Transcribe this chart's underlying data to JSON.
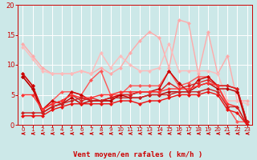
{
  "xlabel": "Vent moyen/en rafales ( km/h )",
  "xlim": [
    -0.5,
    23.5
  ],
  "ylim": [
    0,
    20
  ],
  "yticks": [
    0,
    5,
    10,
    15,
    20
  ],
  "xticks": [
    0,
    1,
    2,
    3,
    4,
    5,
    6,
    7,
    8,
    9,
    10,
    11,
    12,
    13,
    14,
    15,
    16,
    17,
    18,
    19,
    20,
    21,
    22,
    23
  ],
  "bg_color": "#cce8e8",
  "grid_color": "#ffffff",
  "series": [
    {
      "color": "#ffaaaa",
      "lw": 1.0,
      "x": [
        0,
        1,
        2,
        3,
        4,
        5,
        6,
        7,
        8,
        9,
        10,
        11,
        12,
        13,
        14,
        15,
        16,
        17,
        18,
        19,
        20,
        21,
        22,
        23
      ],
      "y": [
        13.5,
        11.5,
        9.5,
        8.5,
        8.5,
        8.5,
        9.0,
        8.5,
        9.5,
        8.5,
        9.5,
        12.0,
        14.0,
        15.5,
        14.5,
        9.5,
        17.5,
        17.0,
        8.5,
        15.5,
        8.5,
        11.5,
        4.0,
        4.0
      ]
    },
    {
      "color": "#ffbbbb",
      "lw": 1.0,
      "x": [
        0,
        1,
        2,
        3,
        4,
        5,
        6,
        7,
        8,
        9,
        10,
        11,
        12,
        13,
        14,
        15,
        16,
        17,
        18,
        19,
        20,
        21,
        22,
        23
      ],
      "y": [
        13.0,
        11.0,
        9.0,
        8.5,
        8.5,
        8.5,
        9.0,
        8.5,
        12.0,
        9.5,
        11.5,
        10.0,
        9.0,
        9.0,
        9.5,
        13.5,
        9.0,
        9.0,
        9.0,
        9.0,
        8.5,
        4.0,
        4.0,
        3.5
      ]
    },
    {
      "color": "#ff5555",
      "lw": 1.0,
      "x": [
        0,
        1,
        2,
        3,
        4,
        5,
        6,
        7,
        8,
        9,
        10,
        11,
        12,
        13,
        14,
        15,
        16,
        17,
        18,
        19,
        20,
        21,
        22,
        23
      ],
      "y": [
        8.5,
        6.5,
        2.5,
        4.0,
        5.5,
        5.5,
        5.0,
        7.5,
        9.0,
        5.0,
        5.0,
        6.5,
        6.5,
        6.5,
        6.5,
        9.0,
        6.5,
        7.0,
        8.0,
        8.0,
        6.5,
        3.0,
        0.5,
        0.5
      ]
    },
    {
      "color": "#cc0000",
      "lw": 1.0,
      "x": [
        0,
        1,
        2,
        3,
        4,
        5,
        6,
        7,
        8,
        9,
        10,
        11,
        12,
        13,
        14,
        15,
        16,
        17,
        18,
        19,
        20,
        21,
        22,
        23
      ],
      "y": [
        8.5,
        6.5,
        2.5,
        4.0,
        3.5,
        5.5,
        5.0,
        4.0,
        4.0,
        4.5,
        5.0,
        5.0,
        5.5,
        5.5,
        6.0,
        9.0,
        7.0,
        5.5,
        7.5,
        8.0,
        6.5,
        6.5,
        6.0,
        0.5
      ]
    },
    {
      "color": "#dd2222",
      "lw": 1.0,
      "x": [
        0,
        1,
        2,
        3,
        4,
        5,
        6,
        7,
        8,
        9,
        10,
        11,
        12,
        13,
        14,
        15,
        16,
        17,
        18,
        19,
        20,
        21,
        22,
        23
      ],
      "y": [
        8.0,
        6.0,
        2.5,
        3.5,
        4.0,
        5.0,
        4.0,
        4.5,
        4.0,
        4.0,
        5.0,
        5.0,
        5.5,
        5.5,
        5.5,
        7.0,
        6.0,
        6.5,
        7.0,
        7.5,
        6.5,
        6.5,
        6.0,
        0.5
      ]
    },
    {
      "color": "#bb0000",
      "lw": 1.0,
      "x": [
        0,
        1,
        2,
        3,
        4,
        5,
        6,
        7,
        8,
        9,
        10,
        11,
        12,
        13,
        14,
        15,
        16,
        17,
        18,
        19,
        20,
        21,
        22,
        23
      ],
      "y": [
        8.0,
        6.0,
        2.0,
        3.0,
        3.5,
        4.5,
        3.5,
        4.0,
        4.0,
        4.0,
        5.0,
        4.5,
        4.5,
        5.0,
        5.0,
        5.5,
        5.5,
        5.5,
        6.5,
        7.0,
        6.0,
        6.0,
        5.5,
        0.0
      ]
    },
    {
      "color": "#ff3333",
      "lw": 1.0,
      "x": [
        0,
        1,
        2,
        3,
        4,
        5,
        6,
        7,
        8,
        9,
        10,
        11,
        12,
        13,
        14,
        15,
        16,
        17,
        18,
        19,
        20,
        21,
        22,
        23
      ],
      "y": [
        5.0,
        5.0,
        2.5,
        3.5,
        4.0,
        5.0,
        4.5,
        4.5,
        5.0,
        5.0,
        5.5,
        5.5,
        5.5,
        5.5,
        5.5,
        6.0,
        6.0,
        6.0,
        6.5,
        7.0,
        6.5,
        3.5,
        3.0,
        0.0
      ]
    },
    {
      "color": "#cc2222",
      "lw": 1.0,
      "x": [
        0,
        1,
        2,
        3,
        4,
        5,
        6,
        7,
        8,
        9,
        10,
        11,
        12,
        13,
        14,
        15,
        16,
        17,
        18,
        19,
        20,
        21,
        22,
        23
      ],
      "y": [
        2.0,
        2.0,
        2.0,
        3.0,
        3.5,
        4.0,
        4.5,
        4.0,
        4.0,
        4.5,
        4.5,
        4.5,
        4.5,
        5.0,
        5.0,
        5.0,
        5.5,
        5.5,
        5.5,
        6.0,
        5.5,
        3.0,
        3.0,
        0.0
      ]
    },
    {
      "color": "#ee1111",
      "lw": 1.0,
      "x": [
        0,
        1,
        2,
        3,
        4,
        5,
        6,
        7,
        8,
        9,
        10,
        11,
        12,
        13,
        14,
        15,
        16,
        17,
        18,
        19,
        20,
        21,
        22,
        23
      ],
      "y": [
        1.5,
        1.5,
        1.5,
        2.5,
        3.0,
        3.5,
        3.5,
        3.5,
        3.5,
        3.5,
        4.0,
        4.0,
        3.5,
        4.0,
        4.0,
        4.5,
        5.0,
        5.0,
        5.0,
        5.5,
        5.0,
        2.5,
        2.0,
        0.0
      ]
    }
  ],
  "wind_arrow_color": "#cc0000",
  "marker_size": 2.5
}
